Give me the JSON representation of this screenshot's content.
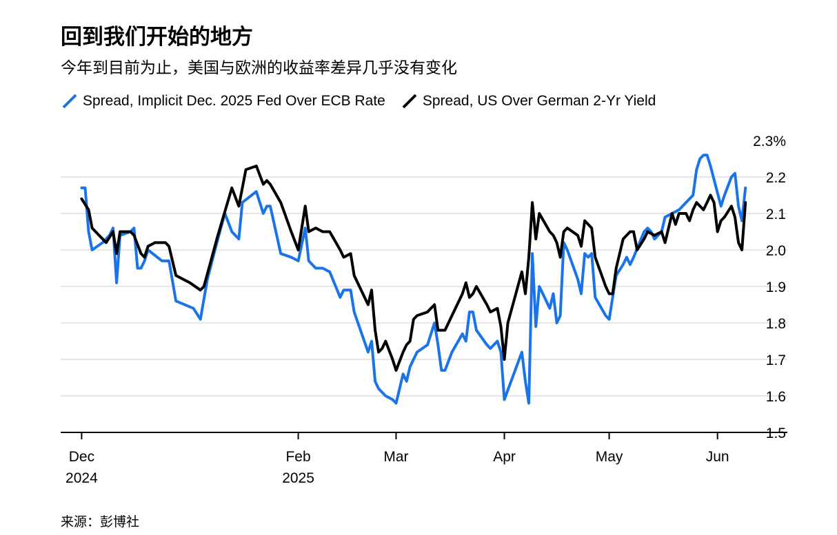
{
  "title": "回到我们开始的地方",
  "subtitle": "今年到目前为止，美国与欧洲的收益率差异几乎没有变化",
  "source": "来源：彭博社",
  "colors": {
    "series_blue": "#1a73e8",
    "series_black": "#000000",
    "grid": "#e6e6e6",
    "axis": "#000000"
  },
  "chart_data": {
    "type": "line",
    "title": "回到我们开始的地方",
    "subtitle": "今年到目前为止，美国与欧洲的收益率差异几乎没有变化",
    "xlabel": "",
    "ylabel": "",
    "ylim": [
      1.5,
      2.3
    ],
    "y_ticks": [
      {
        "value": 2.3,
        "label": "2.3%"
      },
      {
        "value": 2.2,
        "label": "2.2"
      },
      {
        "value": 2.1,
        "label": "2.1"
      },
      {
        "value": 2.0,
        "label": "2.0"
      },
      {
        "value": 1.9,
        "label": "1.9"
      },
      {
        "value": 1.8,
        "label": "1.8"
      },
      {
        "value": 1.7,
        "label": "1.7"
      },
      {
        "value": 1.6,
        "label": "1.6"
      },
      {
        "value": 1.5,
        "label": "1.5"
      }
    ],
    "x_range": [
      "2024-11-25",
      "2025-06-21"
    ],
    "x_ticks": [
      {
        "date": "2024-12-01",
        "label": "Dec",
        "sublabel": "2024"
      },
      {
        "date": "2025-02-01",
        "label": "Feb",
        "sublabel": "2025"
      },
      {
        "date": "2025-03-01",
        "label": "Mar",
        "sublabel": ""
      },
      {
        "date": "2025-04-01",
        "label": "Apr",
        "sublabel": ""
      },
      {
        "date": "2025-05-01",
        "label": "May",
        "sublabel": ""
      },
      {
        "date": "2025-06-01",
        "label": "Jun",
        "sublabel": ""
      }
    ],
    "grid": true,
    "legend_position": "top-left",
    "series": [
      {
        "name": "Spread, Implicit Dec. 2025 Fed Over ECB Rate",
        "color": "#1a73e8",
        "points": [
          [
            "2024-12-01",
            2.17
          ],
          [
            "2024-12-02",
            2.17
          ],
          [
            "2024-12-03",
            2.05
          ],
          [
            "2024-12-04",
            2.0
          ],
          [
            "2024-12-07",
            2.02
          ],
          [
            "2024-12-09",
            2.04
          ],
          [
            "2024-12-10",
            2.06
          ],
          [
            "2024-12-11",
            1.91
          ],
          [
            "2024-12-12",
            2.04
          ],
          [
            "2024-12-15",
            2.05
          ],
          [
            "2024-12-16",
            2.06
          ],
          [
            "2024-12-17",
            1.95
          ],
          [
            "2024-12-18",
            1.95
          ],
          [
            "2024-12-19",
            1.97
          ],
          [
            "2024-12-20",
            2.0
          ],
          [
            "2024-12-24",
            1.97
          ],
          [
            "2024-12-26",
            1.97
          ],
          [
            "2024-12-28",
            1.86
          ],
          [
            "2025-01-02",
            1.84
          ],
          [
            "2025-01-04",
            1.81
          ],
          [
            "2025-01-06",
            1.92
          ],
          [
            "2025-01-09",
            2.03
          ],
          [
            "2025-01-11",
            2.1
          ],
          [
            "2025-01-13",
            2.05
          ],
          [
            "2025-01-15",
            2.03
          ],
          [
            "2025-01-16",
            2.13
          ],
          [
            "2025-01-20",
            2.16
          ],
          [
            "2025-01-22",
            2.1
          ],
          [
            "2025-01-23",
            2.12
          ],
          [
            "2025-01-24",
            2.12
          ],
          [
            "2025-01-27",
            1.99
          ],
          [
            "2025-01-30",
            1.98
          ],
          [
            "2025-02-01",
            1.97
          ],
          [
            "2025-02-03",
            2.06
          ],
          [
            "2025-02-04",
            1.97
          ],
          [
            "2025-02-06",
            1.95
          ],
          [
            "2025-02-08",
            1.95
          ],
          [
            "2025-02-10",
            1.94
          ],
          [
            "2025-02-13",
            1.87
          ],
          [
            "2025-02-14",
            1.89
          ],
          [
            "2025-02-16",
            1.89
          ],
          [
            "2025-02-17",
            1.83
          ],
          [
            "2025-02-21",
            1.72
          ],
          [
            "2025-02-22",
            1.75
          ],
          [
            "2025-02-23",
            1.64
          ],
          [
            "2025-02-24",
            1.62
          ],
          [
            "2025-02-25",
            1.61
          ],
          [
            "2025-02-26",
            1.6
          ],
          [
            "2025-02-28",
            1.59
          ],
          [
            "2025-03-01",
            1.58
          ],
          [
            "2025-03-03",
            1.66
          ],
          [
            "2025-03-04",
            1.64
          ],
          [
            "2025-03-05",
            1.68
          ],
          [
            "2025-03-06",
            1.7
          ],
          [
            "2025-03-07",
            1.72
          ],
          [
            "2025-03-10",
            1.74
          ],
          [
            "2025-03-11",
            1.77
          ],
          [
            "2025-03-12",
            1.8
          ],
          [
            "2025-03-13",
            1.74
          ],
          [
            "2025-03-14",
            1.67
          ],
          [
            "2025-03-15",
            1.67
          ],
          [
            "2025-03-17",
            1.72
          ],
          [
            "2025-03-20",
            1.77
          ],
          [
            "2025-03-21",
            1.75
          ],
          [
            "2025-03-22",
            1.83
          ],
          [
            "2025-03-23",
            1.83
          ],
          [
            "2025-03-24",
            1.78
          ],
          [
            "2025-03-27",
            1.74
          ],
          [
            "2025-03-28",
            1.73
          ],
          [
            "2025-03-30",
            1.75
          ],
          [
            "2025-03-31",
            1.72
          ],
          [
            "2025-04-01",
            1.59
          ],
          [
            "2025-04-06",
            1.72
          ],
          [
            "2025-04-07",
            1.64
          ],
          [
            "2025-04-08",
            1.58
          ],
          [
            "2025-04-09",
            1.99
          ],
          [
            "2025-04-10",
            1.79
          ],
          [
            "2025-04-11",
            1.9
          ],
          [
            "2025-04-14",
            1.84
          ],
          [
            "2025-04-15",
            1.88
          ],
          [
            "2025-04-16",
            1.8
          ],
          [
            "2025-04-17",
            1.82
          ],
          [
            "2025-04-18",
            2.02
          ],
          [
            "2025-04-19",
            2.0
          ],
          [
            "2025-04-22",
            1.92
          ],
          [
            "2025-04-23",
            1.88
          ],
          [
            "2025-04-24",
            1.99
          ],
          [
            "2025-04-25",
            1.98
          ],
          [
            "2025-04-26",
            1.99
          ],
          [
            "2025-04-27",
            1.87
          ],
          [
            "2025-04-30",
            1.82
          ],
          [
            "2025-05-01",
            1.81
          ],
          [
            "2025-05-02",
            1.87
          ],
          [
            "2025-05-03",
            1.93
          ],
          [
            "2025-05-05",
            1.96
          ],
          [
            "2025-05-06",
            1.98
          ],
          [
            "2025-05-07",
            1.96
          ],
          [
            "2025-05-08",
            1.98
          ],
          [
            "2025-05-11",
            2.05
          ],
          [
            "2025-05-12",
            2.06
          ],
          [
            "2025-05-13",
            2.05
          ],
          [
            "2025-05-14",
            2.03
          ],
          [
            "2025-05-16",
            2.05
          ],
          [
            "2025-05-17",
            2.09
          ],
          [
            "2025-05-19",
            2.1
          ],
          [
            "2025-05-21",
            2.11
          ],
          [
            "2025-05-23",
            2.13
          ],
          [
            "2025-05-25",
            2.15
          ],
          [
            "2025-05-26",
            2.22
          ],
          [
            "2025-05-27",
            2.25
          ],
          [
            "2025-05-28",
            2.26
          ],
          [
            "2025-05-29",
            2.26
          ],
          [
            "2025-05-30",
            2.23
          ],
          [
            "2025-06-02",
            2.12
          ],
          [
            "2025-06-03",
            2.15
          ],
          [
            "2025-06-05",
            2.2
          ],
          [
            "2025-06-06",
            2.21
          ],
          [
            "2025-06-07",
            2.12
          ],
          [
            "2025-06-08",
            2.08
          ],
          [
            "2025-06-09",
            2.17
          ]
        ]
      },
      {
        "name": "Spread, US Over German 2-Yr Yield",
        "color": "#000000",
        "points": [
          [
            "2024-12-01",
            2.14
          ],
          [
            "2024-12-03",
            2.11
          ],
          [
            "2024-12-04",
            2.06
          ],
          [
            "2024-12-06",
            2.04
          ],
          [
            "2024-12-08",
            2.02
          ],
          [
            "2024-12-10",
            2.05
          ],
          [
            "2024-12-11",
            1.99
          ],
          [
            "2024-12-12",
            2.05
          ],
          [
            "2024-12-15",
            2.05
          ],
          [
            "2024-12-16",
            2.04
          ],
          [
            "2024-12-18",
            1.99
          ],
          [
            "2024-12-19",
            1.98
          ],
          [
            "2024-12-20",
            2.01
          ],
          [
            "2024-12-22",
            2.02
          ],
          [
            "2024-12-24",
            2.02
          ],
          [
            "2024-12-25",
            2.02
          ],
          [
            "2024-12-26",
            2.01
          ],
          [
            "2024-12-28",
            1.93
          ],
          [
            "2025-01-01",
            1.91
          ],
          [
            "2025-01-04",
            1.89
          ],
          [
            "2025-01-05",
            1.9
          ],
          [
            "2025-01-09",
            2.04
          ],
          [
            "2025-01-13",
            2.17
          ],
          [
            "2025-01-15",
            2.12
          ],
          [
            "2025-01-17",
            2.22
          ],
          [
            "2025-01-20",
            2.23
          ],
          [
            "2025-01-22",
            2.18
          ],
          [
            "2025-01-23",
            2.19
          ],
          [
            "2025-01-24",
            2.18
          ],
          [
            "2025-01-27",
            2.13
          ],
          [
            "2025-01-30",
            2.05
          ],
          [
            "2025-02-01",
            2.0
          ],
          [
            "2025-02-03",
            2.12
          ],
          [
            "2025-02-04",
            2.05
          ],
          [
            "2025-02-06",
            2.06
          ],
          [
            "2025-02-08",
            2.05
          ],
          [
            "2025-02-10",
            2.05
          ],
          [
            "2025-02-13",
            2.0
          ],
          [
            "2025-02-14",
            1.98
          ],
          [
            "2025-02-16",
            1.99
          ],
          [
            "2025-02-17",
            1.93
          ],
          [
            "2025-02-21",
            1.85
          ],
          [
            "2025-02-22",
            1.89
          ],
          [
            "2025-02-23",
            1.78
          ],
          [
            "2025-02-24",
            1.72
          ],
          [
            "2025-02-25",
            1.73
          ],
          [
            "2025-02-26",
            1.75
          ],
          [
            "2025-02-28",
            1.7
          ],
          [
            "2025-03-01",
            1.67
          ],
          [
            "2025-03-03",
            1.72
          ],
          [
            "2025-03-04",
            1.74
          ],
          [
            "2025-03-05",
            1.75
          ],
          [
            "2025-03-06",
            1.81
          ],
          [
            "2025-03-07",
            1.82
          ],
          [
            "2025-03-10",
            1.83
          ],
          [
            "2025-03-11",
            1.84
          ],
          [
            "2025-03-12",
            1.85
          ],
          [
            "2025-03-13",
            1.78
          ],
          [
            "2025-03-15",
            1.78
          ],
          [
            "2025-03-17",
            1.82
          ],
          [
            "2025-03-20",
            1.88
          ],
          [
            "2025-03-21",
            1.91
          ],
          [
            "2025-03-22",
            1.87
          ],
          [
            "2025-03-23",
            1.88
          ],
          [
            "2025-03-24",
            1.9
          ],
          [
            "2025-03-27",
            1.85
          ],
          [
            "2025-03-28",
            1.83
          ],
          [
            "2025-03-30",
            1.84
          ],
          [
            "2025-03-31",
            1.79
          ],
          [
            "2025-04-01",
            1.7
          ],
          [
            "2025-04-02",
            1.8
          ],
          [
            "2025-04-06",
            1.94
          ],
          [
            "2025-04-07",
            1.88
          ],
          [
            "2025-04-08",
            1.98
          ],
          [
            "2025-04-09",
            2.13
          ],
          [
            "2025-04-10",
            2.03
          ],
          [
            "2025-04-11",
            2.1
          ],
          [
            "2025-04-14",
            2.05
          ],
          [
            "2025-04-15",
            2.04
          ],
          [
            "2025-04-16",
            2.02
          ],
          [
            "2025-04-17",
            1.98
          ],
          [
            "2025-04-18",
            2.05
          ],
          [
            "2025-04-19",
            2.06
          ],
          [
            "2025-04-22",
            2.04
          ],
          [
            "2025-04-23",
            2.01
          ],
          [
            "2025-04-24",
            2.08
          ],
          [
            "2025-04-25",
            2.07
          ],
          [
            "2025-04-26",
            2.06
          ],
          [
            "2025-04-27",
            1.98
          ],
          [
            "2025-04-30",
            1.9
          ],
          [
            "2025-05-01",
            1.88
          ],
          [
            "2025-05-02",
            1.88
          ],
          [
            "2025-05-03",
            1.95
          ],
          [
            "2025-05-05",
            2.03
          ],
          [
            "2025-05-06",
            2.04
          ],
          [
            "2025-05-07",
            2.05
          ],
          [
            "2025-05-08",
            2.05
          ],
          [
            "2025-05-09",
            2.0
          ],
          [
            "2025-05-11",
            2.03
          ],
          [
            "2025-05-12",
            2.05
          ],
          [
            "2025-05-14",
            2.04
          ],
          [
            "2025-05-16",
            2.05
          ],
          [
            "2025-05-17",
            2.02
          ],
          [
            "2025-05-19",
            2.1
          ],
          [
            "2025-05-20",
            2.07
          ],
          [
            "2025-05-21",
            2.1
          ],
          [
            "2025-05-23",
            2.1
          ],
          [
            "2025-05-24",
            2.08
          ],
          [
            "2025-05-25",
            2.11
          ],
          [
            "2025-05-26",
            2.13
          ],
          [
            "2025-05-27",
            2.12
          ],
          [
            "2025-05-28",
            2.11
          ],
          [
            "2025-05-30",
            2.15
          ],
          [
            "2025-05-31",
            2.13
          ],
          [
            "2025-06-01",
            2.05
          ],
          [
            "2025-06-02",
            2.08
          ],
          [
            "2025-06-03",
            2.09
          ],
          [
            "2025-06-05",
            2.12
          ],
          [
            "2025-06-06",
            2.09
          ],
          [
            "2025-06-07",
            2.02
          ],
          [
            "2025-06-08",
            2.0
          ],
          [
            "2025-06-09",
            2.13
          ]
        ]
      }
    ]
  }
}
